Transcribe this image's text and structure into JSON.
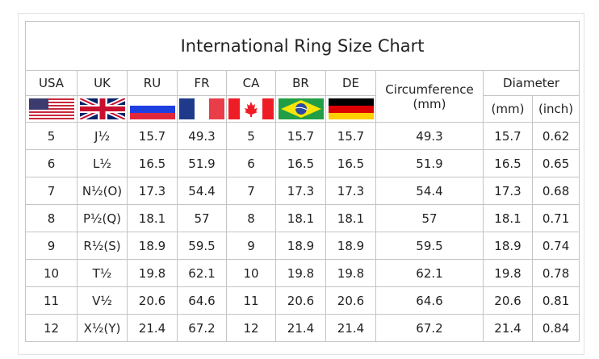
{
  "title": "International Ring Size Chart",
  "headers": {
    "usa": "USA",
    "uk": "UK",
    "ru": "RU",
    "fr": "FR",
    "ca": "CA",
    "br": "BR",
    "de": "DE",
    "circumference": "Circumference",
    "circumference_unit": "(mm)",
    "diameter": "Diameter",
    "diameter_mm": "(mm)",
    "diameter_inch": "(inch)"
  },
  "flags": [
    "usa-flag-icon",
    "uk-flag-icon",
    "russia-flag-icon",
    "france-flag-icon",
    "canada-flag-icon",
    "brazil-flag-icon",
    "germany-flag-icon"
  ],
  "rows": [
    [
      "5",
      "J½",
      "15.7",
      "49.3",
      "5",
      "15.7",
      "15.7",
      "49.3",
      "15.7",
      "0.62"
    ],
    [
      "6",
      "L½",
      "16.5",
      "51.9",
      "6",
      "16.5",
      "16.5",
      "51.9",
      "16.5",
      "0.65"
    ],
    [
      "7",
      "N½(O)",
      "17.3",
      "54.4",
      "7",
      "17.3",
      "17.3",
      "54.4",
      "17.3",
      "0.68"
    ],
    [
      "8",
      "P½(Q)",
      "18.1",
      "57",
      "8",
      "18.1",
      "18.1",
      "57",
      "18.1",
      "0.71"
    ],
    [
      "9",
      "R½(S)",
      "18.9",
      "59.5",
      "9",
      "18.9",
      "18.9",
      "59.5",
      "18.9",
      "0.74"
    ],
    [
      "10",
      "T½",
      "19.8",
      "62.1",
      "10",
      "19.8",
      "19.8",
      "62.1",
      "19.8",
      "0.78"
    ],
    [
      "11",
      "V½",
      "20.6",
      "64.6",
      "11",
      "20.6",
      "20.6",
      "64.6",
      "20.6",
      "0.81"
    ],
    [
      "12",
      "X½(Y)",
      "21.4",
      "67.2",
      "12",
      "21.4",
      "21.4",
      "67.2",
      "21.4",
      "0.84"
    ]
  ]
}
